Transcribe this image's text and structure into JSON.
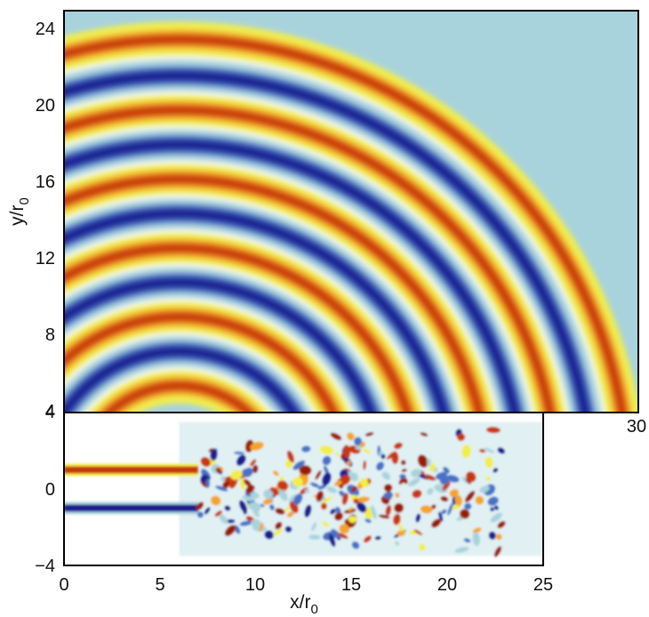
{
  "chart_data": [
    {
      "type": "heatmap",
      "panel": "top",
      "ylabel": "y/r",
      "ylabel_sub": "0",
      "xlim": [
        0,
        30
      ],
      "ylim": [
        4,
        25
      ],
      "yticks": [
        "24",
        "20",
        "16",
        "12",
        "8",
        "4"
      ],
      "xticks": [
        "30"
      ],
      "colormap": [
        "#1b1f8f",
        "#4a6fc4",
        "#a9d3dc",
        "#ffffff",
        "#f2ee4a",
        "#f4a32a",
        "#c8380e",
        "#9a1e06"
      ],
      "wave_fronts": [
        {
          "radius": 23.5,
          "sign": 1
        },
        {
          "radius": 21.6,
          "sign": -1
        },
        {
          "radius": 19.8,
          "sign": 1
        },
        {
          "radius": 18.0,
          "sign": -1
        },
        {
          "radius": 16.2,
          "sign": 1
        },
        {
          "radius": 14.4,
          "sign": -1
        },
        {
          "radius": 12.6,
          "sign": 1
        },
        {
          "radius": 10.8,
          "sign": -1
        },
        {
          "radius": 9.0,
          "sign": 1
        },
        {
          "radius": 7.2,
          "sign": -1
        },
        {
          "radius": 5.4,
          "sign": 1
        }
      ],
      "source_x": 6,
      "source_y": 0
    },
    {
      "type": "heatmap",
      "panel": "bottom",
      "xlabel": "x/r",
      "xlabel_sub": "0",
      "xlim": [
        0,
        25
      ],
      "ylim": [
        -4,
        4
      ],
      "xticks": [
        "0",
        "5",
        "10",
        "15",
        "20",
        "25"
      ],
      "yticks": [
        "4",
        "0",
        "−4"
      ],
      "shear_layers": [
        {
          "y": 1,
          "sign": 1
        },
        {
          "y": -1,
          "sign": -1
        }
      ],
      "colormap": [
        "#1b1f8f",
        "#4a6fc4",
        "#a9d3dc",
        "#ffffff",
        "#f2ee4a",
        "#f4a32a",
        "#c8380e",
        "#9a1e06"
      ]
    }
  ]
}
